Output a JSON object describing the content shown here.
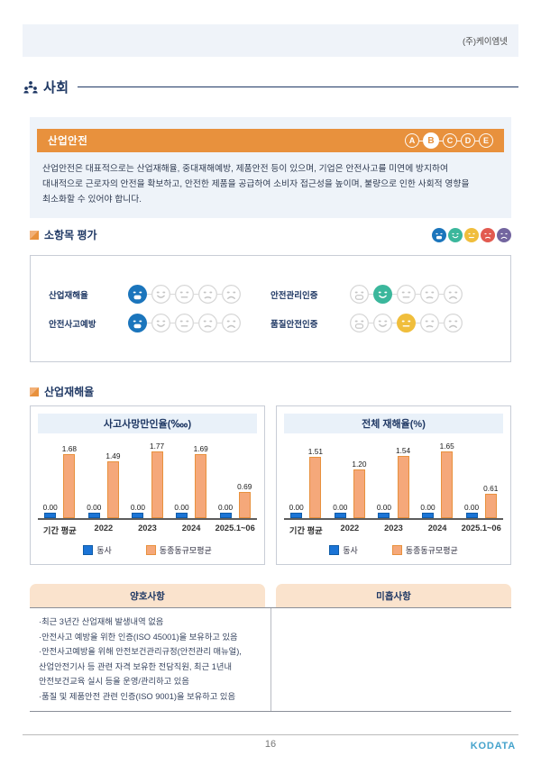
{
  "page": {
    "company": "(주)케이엠넷",
    "page_number": "16",
    "logo": "KODATA"
  },
  "section": {
    "title": "사회",
    "banner": {
      "title": "산업안전",
      "grades": [
        "A",
        "B",
        "C",
        "D",
        "E"
      ],
      "active_grade": "B",
      "banner_color": "#E8913D"
    },
    "description_lines": [
      "산업안전은 대표적으로는 산업재해율, 중대재해예방, 제품안전 등이 있으며, 기업은 안전사고를 미연에 방지하여",
      "대내적으로 근로자의 안전을 확보하고, 안전한 제품을 공급하여 소비자 접근성을 높이며, 불량으로 인한 사회적 영향을",
      "최소화할 수 있어야 합니다."
    ]
  },
  "evaluation": {
    "heading": "소항목 평가",
    "scale_colors": [
      "#1B75BC",
      "#3BB79C",
      "#F0BE3C",
      "#E25A50",
      "#73659F"
    ],
    "items": [
      {
        "label": "산업재해율",
        "selected": 0,
        "color": "#1B75BC"
      },
      {
        "label": "안전관리인증",
        "selected": 1,
        "color": "#3BB79C"
      },
      {
        "label": "안전사고예방",
        "selected": 0,
        "color": "#1B75BC"
      },
      {
        "label": "품질안전인증",
        "selected": 2,
        "color": "#F0BE3C"
      }
    ]
  },
  "charts_section": {
    "heading": "산업재해율"
  },
  "chart_data": [
    {
      "type": "bar",
      "title": "사고사망만인율(‱)",
      "categories": [
        "기간 평균",
        "2022",
        "2023",
        "2024",
        "2025.1~06"
      ],
      "series": [
        {
          "name": "동사",
          "color": "#1B74D6",
          "values": [
            0.0,
            0.0,
            0.0,
            0.0,
            0.0
          ]
        },
        {
          "name": "동종동규모평균",
          "color": "#F5A87A",
          "values": [
            1.68,
            1.49,
            1.77,
            1.69,
            0.69
          ]
        }
      ],
      "ylim": [
        0,
        2
      ],
      "grid": false,
      "legend_position": "bottom"
    },
    {
      "type": "bar",
      "title": "전체 재해율(%)",
      "categories": [
        "기간 평균",
        "2022",
        "2023",
        "2024",
        "2025.1~06"
      ],
      "series": [
        {
          "name": "동사",
          "color": "#1B74D6",
          "values": [
            0.0,
            0.0,
            0.0,
            0.0,
            0.0
          ]
        },
        {
          "name": "동종동규모평균",
          "color": "#F5A87A",
          "values": [
            1.51,
            1.2,
            1.54,
            1.65,
            0.61
          ]
        }
      ],
      "ylim": [
        0,
        2
      ],
      "grid": false,
      "legend_position": "bottom"
    }
  ],
  "assessment_table": {
    "good_header": "양호사항",
    "weak_header": "미흡사항",
    "good_lines": [
      "·최근 3년간 산업재해 발생내역 없음",
      "·안전사고 예방을 위한 인증(ISO 45001)을 보유하고 있음",
      "·안전사고예방을 위해 안전보건관리규정(안전관리 매뉴얼),",
      "산업안전기사 등 관련 자격 보유한 전담직원, 최근 1년내",
      "안전보건교육 실시 등을 운영/관리하고 있음",
      "·품질 및 제품안전 관련 인증(ISO 9001)을 보유하고 있음"
    ],
    "weak_lines": []
  }
}
